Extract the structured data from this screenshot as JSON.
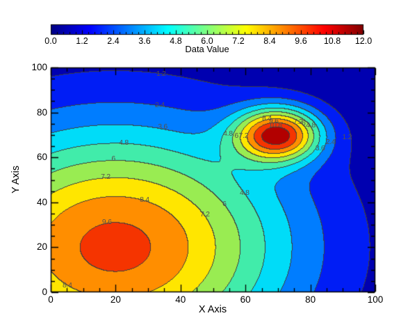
{
  "chart_data": {
    "type": "filled_contour",
    "title": "",
    "xlabel": "X Axis",
    "ylabel": "Y Axis",
    "colorbar_label": "Data Value",
    "xlim": [
      0,
      100
    ],
    "ylim": [
      0,
      100
    ],
    "zlim": [
      0,
      12
    ],
    "x_ticks": [
      0,
      20,
      40,
      60,
      80,
      100
    ],
    "y_ticks": [
      0,
      20,
      40,
      60,
      80,
      100
    ],
    "axis_minor_tick_step": 5,
    "grid": false,
    "levels": [
      0,
      1.2,
      2.4,
      3.6,
      4.8,
      6.0,
      7.2,
      8.4,
      9.6,
      10.8,
      12.0
    ],
    "colorbar_tick_labels": [
      "0.0",
      "1.2",
      "2.4",
      "3.6",
      "4.8",
      "6.0",
      "7.2",
      "8.4",
      "9.6",
      "10.8",
      "12.0"
    ],
    "colorbar_minor_tick_step": 0.24,
    "colormap": "jet-rainbow",
    "colormap_stops": [
      [
        0,
        "#000082"
      ],
      [
        0.125,
        "#0000ff"
      ],
      [
        0.375,
        "#00ffff"
      ],
      [
        0.625,
        "#ffff00"
      ],
      [
        0.875,
        "#ff0000"
      ],
      [
        1,
        "#7f0000"
      ]
    ],
    "fill_colors": [
      "#0000b0",
      "#001df5",
      "#007dff",
      "#00dcf8",
      "#41ecaa",
      "#99ec52",
      "#ffe600",
      "#ff8e00",
      "#f53400",
      "#b20000"
    ],
    "contour_line_color": "#3f3f3f",
    "contour_label_color": "#56524c",
    "axis_color": "#000000",
    "field_model": {
      "description": "two gaussian peaks: z = sum A*exp(-((x-cx)^2/(2*sx^2)+(y-cy)^2/(2*sy^2)))",
      "peaks": [
        {
          "amplitude": 10,
          "cx": 20,
          "cy": 20,
          "sx": 38.08,
          "sy": 38.08,
          "peak_value_shown": "9.6-10.8 band core"
        },
        {
          "amplitude": 10,
          "cx": 70,
          "cy": 70,
          "sx": 9.22,
          "sy": 8.37,
          "peak_value_shown": "10.8-12 band core"
        }
      ]
    },
    "contour_labels": [
      {
        "v": "1.2",
        "x": 34,
        "y": 97.2
      },
      {
        "v": "2.4",
        "x": 33.6,
        "y": 83.3
      },
      {
        "v": "3.6",
        "x": 34.5,
        "y": 73.6
      },
      {
        "v": "4.8",
        "x": 22.5,
        "y": 66.5
      },
      {
        "v": "6",
        "x": 19.3,
        "y": 59.4
      },
      {
        "v": "7.2",
        "x": 16.9,
        "y": 51.4
      },
      {
        "v": "8.4",
        "x": 28.9,
        "y": 41.2
      },
      {
        "v": "9.6",
        "x": 17.3,
        "y": 31.3
      },
      {
        "v": "8.4",
        "x": 5.1,
        "y": 3.1
      },
      {
        "v": "7.2",
        "x": 47.5,
        "y": 34.7
      },
      {
        "v": "6",
        "x": 53.5,
        "y": 39.3
      },
      {
        "v": "4.8",
        "x": 59.7,
        "y": 44.3
      },
      {
        "v": "4.8",
        "x": 54.6,
        "y": 70.6
      },
      {
        "v": "6",
        "x": 57.2,
        "y": 69.8
      },
      {
        "v": "7.2",
        "x": 59.4,
        "y": 69.8
      },
      {
        "v": "8.4",
        "x": 66.6,
        "y": 77.4
      },
      {
        "v": "9.6",
        "x": 68.7,
        "y": 76.2
      },
      {
        "v": "10.8",
        "x": 69.2,
        "y": 74.3
      },
      {
        "v": "7.2",
        "x": 76.2,
        "y": 75.9
      },
      {
        "v": "6",
        "x": 77.9,
        "y": 75.2
      },
      {
        "v": "4.8",
        "x": 80.1,
        "y": 74.3
      },
      {
        "v": "3.6",
        "x": 83,
        "y": 64.2
      },
      {
        "v": "2.4",
        "x": 86.2,
        "y": 66.8
      },
      {
        "v": "1.2",
        "x": 91.3,
        "y": 69
      }
    ]
  }
}
